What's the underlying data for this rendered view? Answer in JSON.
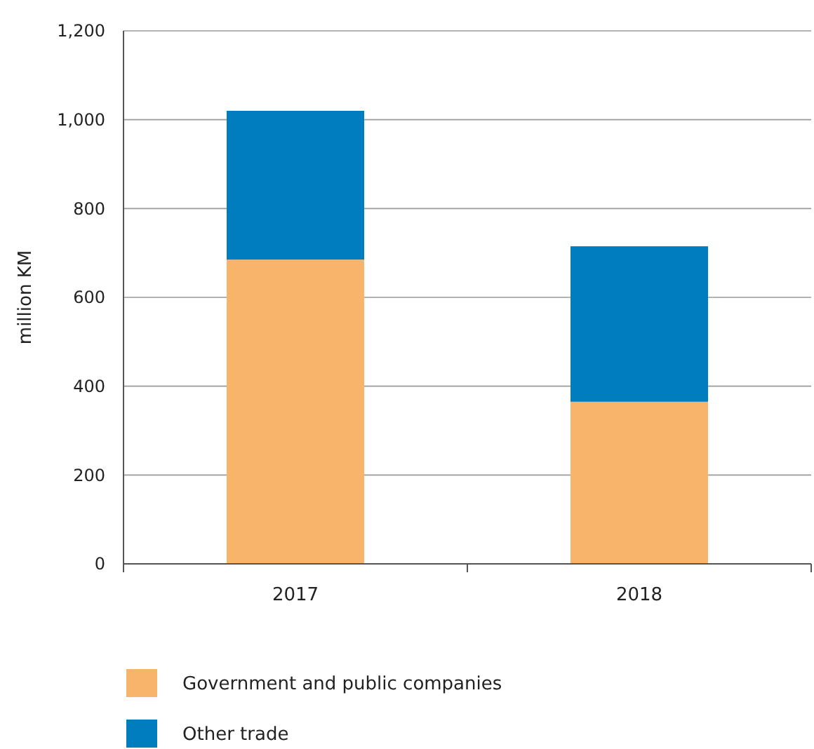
{
  "chart_data": {
    "type": "bar",
    "stacked": true,
    "ylabel": "million KM",
    "categories": [
      "2017",
      "2018"
    ],
    "series": [
      {
        "name": "Government and public companies",
        "color": "#f9b46b",
        "values": [
          685,
          365
        ]
      },
      {
        "name": "Other trade",
        "color": "#007dbf",
        "values": [
          335,
          350
        ]
      }
    ],
    "ylim": [
      0,
      1200
    ],
    "yticks": [
      0,
      {
        "value": 200,
        "label": "200"
      },
      {
        "value": 400,
        "label": "400"
      },
      {
        "value": 600,
        "label": "600"
      },
      {
        "value": 800,
        "label": "800"
      },
      {
        "value": 1000,
        "label": "1,000"
      },
      {
        "value": 1200,
        "label": "1,200"
      }
    ],
    "grid": "y",
    "legend": "bottom"
  }
}
